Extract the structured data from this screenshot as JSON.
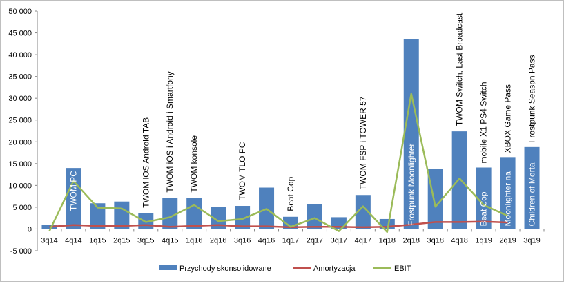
{
  "chart_data": {
    "type": "bar",
    "categories": [
      "3q14",
      "4q14",
      "1q15",
      "2q15",
      "3q15",
      "4q15",
      "1q16",
      "2q16",
      "3q16",
      "4q16",
      "1q17",
      "2q17",
      "3q17",
      "4q17",
      "1q18",
      "2q18",
      "3q18",
      "4q18",
      "1q19",
      "2q19",
      "3q19"
    ],
    "series": [
      {
        "name": "Przychody skonsolidowane",
        "type": "bar",
        "color": "#4f81bd",
        "values": [
          1000,
          14000,
          5900,
          6300,
          3600,
          7100,
          7100,
          5000,
          5300,
          9500,
          2800,
          5700,
          2700,
          7800,
          2300,
          43500,
          13800,
          22400,
          14100,
          16500,
          18800
        ]
      },
      {
        "name": "Amortyzacja",
        "type": "line",
        "color": "#c0504d",
        "values": [
          500,
          900,
          700,
          700,
          900,
          500,
          700,
          900,
          600,
          600,
          400,
          500,
          500,
          400,
          500,
          1000,
          1600,
          1600,
          1700,
          1500,
          null
        ]
      },
      {
        "name": "EBIT",
        "type": "line",
        "color": "#9bbb59",
        "values": [
          -500,
          11000,
          4900,
          4700,
          1600,
          2700,
          5500,
          1800,
          2300,
          4600,
          500,
          2500,
          -500,
          5200,
          -700,
          31000,
          5100,
          11600,
          5500,
          3000,
          null
        ]
      }
    ],
    "annotations": [
      {
        "category": "4q14",
        "text": "TWOM PC"
      },
      {
        "category": "3q15",
        "text": "TWOM iOS Android TAB"
      },
      {
        "category": "4q15",
        "text": "TWOM iOS i Android i Smartfony"
      },
      {
        "category": "1q16",
        "text": "TWOM konsole"
      },
      {
        "category": "3q16",
        "text": "TWOM TLO  PC"
      },
      {
        "category": "1q17",
        "text": "Beat Cop"
      },
      {
        "category": "4q17",
        "text": "TWOM FSP i TOWER 57"
      },
      {
        "category": "2q18",
        "text": "Frostpunk  Moonlighter"
      },
      {
        "category": "4q18",
        "text": "TWOM Switch, Last Broadcast"
      },
      {
        "category": "1q19",
        "text": "mobile X1 PS4 Switch"
      },
      {
        "category": "1q19",
        "text": "Beat Cop"
      },
      {
        "category": "2q19",
        "text": "XBOX Game Pass"
      },
      {
        "category": "2q19",
        "text": "Moonlighter na"
      },
      {
        "category": "3q19",
        "text": "Frostpunk Seaspn Pass"
      },
      {
        "category": "3q19",
        "text": "Children of Morta"
      }
    ],
    "ylim": [
      -5000,
      50000
    ],
    "yticks": [
      "-5 000",
      "0",
      "5 000",
      "10 000",
      "15 000",
      "20 000",
      "25 000",
      "30 000",
      "35 000",
      "40 000",
      "45 000",
      "50 000"
    ],
    "ytick_values": [
      -5000,
      0,
      5000,
      10000,
      15000,
      20000,
      25000,
      30000,
      35000,
      40000,
      45000,
      50000
    ],
    "grid": false,
    "legend": "bottom"
  }
}
